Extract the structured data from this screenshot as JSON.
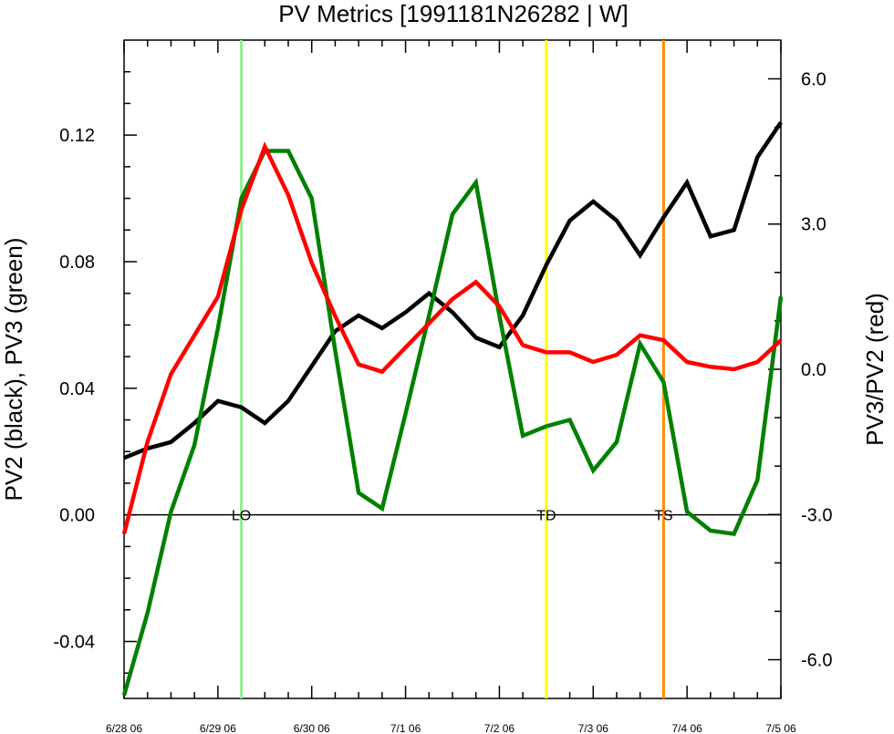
{
  "chart_data": {
    "type": "line",
    "title": "PV Metrics [1991181N26282 | W]",
    "ylabel_left": "PV2 (black), PV3 (green)",
    "ylabel_right": "PV3/PV2 (red)",
    "x_categories": [
      "6/28 06",
      "6/29 06",
      "6/30 06",
      "7/1 06",
      "7/2 06",
      "7/3 06",
      "7/4 06",
      "7/5 06"
    ],
    "xlim": [
      0,
      7
    ],
    "ylim_left": [
      -0.058,
      0.15
    ],
    "ylim_right": [
      -6.8,
      6.8
    ],
    "yticks_left": [
      -0.04,
      0.0,
      0.04,
      0.08,
      0.12
    ],
    "ytick_labels_left": [
      "-0.04",
      "0.00",
      "0.04",
      "0.08",
      "0.12"
    ],
    "yticks_right": [
      -6.0,
      -3.0,
      0.0,
      3.0,
      6.0
    ],
    "ytick_labels_right": [
      "-6.0",
      "-3.0",
      "0.0",
      "3.0",
      "6.0"
    ],
    "zero_line": 0,
    "series": [
      {
        "axis": "left",
        "color": "#000000",
        "x": [
          0,
          0.25,
          0.5,
          0.75,
          1,
          1.25,
          1.5,
          1.75,
          2,
          2.25,
          2.5,
          2.75,
          3,
          3.25,
          3.5,
          3.75,
          4,
          4.25,
          4.5,
          4.75,
          5,
          5.25,
          5.5,
          5.75,
          6,
          6.25,
          6.5,
          6.75,
          7
        ],
        "values": [
          0.018,
          0.021,
          0.023,
          0.029,
          0.036,
          0.034,
          0.029,
          0.036,
          0.047,
          0.058,
          0.063,
          0.059,
          0.064,
          0.07,
          0.064,
          0.056,
          0.053,
          0.063,
          0.079,
          0.093,
          0.099,
          0.093,
          0.082,
          0.094,
          0.105,
          0.088,
          0.09,
          0.113,
          0.124
        ]
      },
      {
        "axis": "left",
        "color": "#008000",
        "x": [
          0,
          0.25,
          0.5,
          0.75,
          1,
          1.25,
          1.5,
          1.75,
          2,
          2.25,
          2.5,
          2.75,
          3,
          3.25,
          3.5,
          3.75,
          4,
          4.25,
          4.5,
          4.75,
          5,
          5.25,
          5.5,
          5.75,
          6,
          6.25,
          6.5,
          6.75,
          7
        ],
        "values": [
          -0.057,
          -0.031,
          0.001,
          0.022,
          0.059,
          0.1,
          0.115,
          0.115,
          0.1,
          0.052,
          0.007,
          0.002,
          0.032,
          0.063,
          0.095,
          0.105,
          0.063,
          0.025,
          0.028,
          0.03,
          0.014,
          0.023,
          0.054,
          0.042,
          0.001,
          -0.005,
          -0.006,
          0.011,
          0.069
        ]
      },
      {
        "axis": "right",
        "color": "#ff0000",
        "x": [
          0,
          0.25,
          0.5,
          0.75,
          1,
          1.25,
          1.5,
          1.75,
          2,
          2.25,
          2.5,
          2.75,
          3,
          3.25,
          3.5,
          3.75,
          4,
          4.25,
          4.5,
          4.75,
          5,
          5.25,
          5.5,
          5.75,
          6,
          6.25,
          6.5,
          6.75,
          7
        ],
        "values": [
          -3.4,
          -1.5,
          -0.1,
          0.7,
          1.5,
          3.3,
          4.6,
          3.6,
          2.2,
          1.1,
          0.1,
          -0.05,
          0.45,
          0.95,
          1.45,
          1.8,
          1.3,
          0.5,
          0.35,
          0.35,
          0.15,
          0.3,
          0.7,
          0.6,
          0.15,
          0.05,
          0.0,
          0.15,
          0.6
        ]
      }
    ],
    "vertical_markers": [
      {
        "label": "LO",
        "x": 1.25,
        "color": "#90ee90"
      },
      {
        "label": "TD",
        "x": 4.5,
        "color": "#ffff00"
      },
      {
        "label": "TS",
        "x": 5.75,
        "color": "#ff8c00"
      }
    ],
    "grid": false,
    "legend": "none"
  }
}
